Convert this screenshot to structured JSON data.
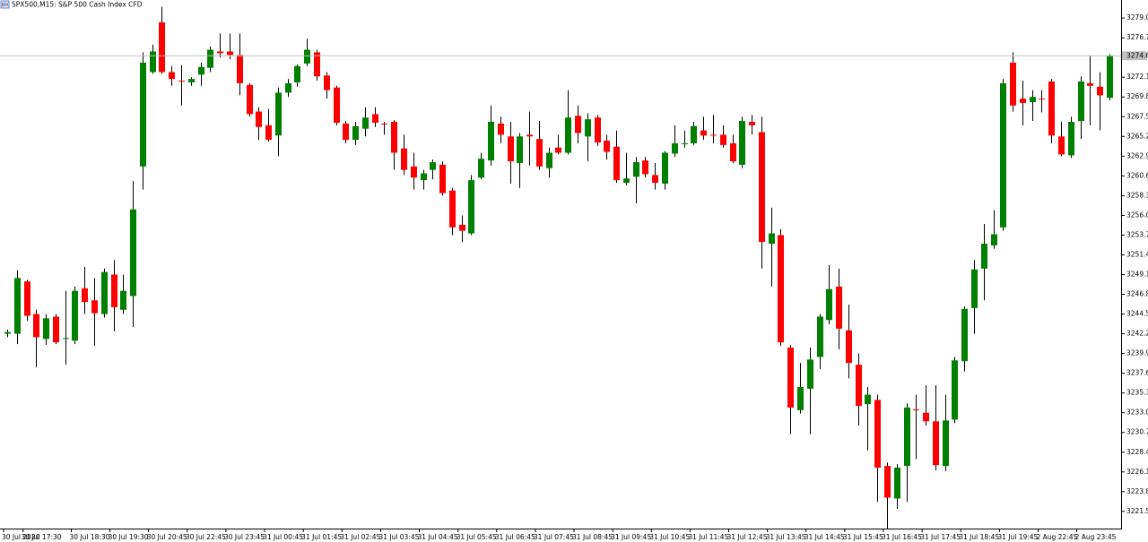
{
  "chart_data": {
    "type": "candlestick",
    "title": "SPX500,M15:  S&P 500 Cash Index CFD",
    "categories": [
      "30 Jul 2020",
      null,
      "30 Jul 17:30",
      null,
      null,
      null,
      null,
      "30 Jul 18:30",
      null,
      null,
      null,
      "30 Jul 19:30",
      null,
      null,
      null,
      "30 Jul 20:45",
      null,
      null,
      null,
      "30 Jul 22:45",
      null,
      null,
      null,
      "30 Jul 23:45",
      null,
      null,
      null,
      "31 Jul 00:45",
      null,
      null,
      null,
      "31 Jul 01:45",
      null,
      null,
      null,
      "31 Jul 02:45",
      null,
      null,
      null,
      "31 Jul 03:45",
      null,
      null,
      null,
      "31 Jul 04:45",
      null,
      null,
      null,
      "31 Jul 05:45",
      null,
      null,
      null,
      "31 Jul 06:45",
      null,
      null,
      null,
      "31 Jul 07:45",
      null,
      null,
      null,
      "31 Jul 08:45",
      null,
      null,
      null,
      "31 Jul 09:45",
      null,
      null,
      null,
      "31 Jul 10:45",
      null,
      null,
      null,
      "31 Jul 11:45",
      null,
      null,
      null,
      "31 Jul 12:45",
      null,
      null,
      null,
      "31 Jul 13:45",
      null,
      null,
      null,
      "31 Jul 14:45",
      null,
      null,
      null,
      "31 Jul 15:45",
      null,
      null,
      null,
      "31 Jul 16:45",
      null,
      null,
      null,
      "31 Jul 17:45",
      null,
      null,
      null,
      "31 Jul 18:45",
      null,
      null,
      null,
      "31 Jul 19:45",
      null,
      null,
      null,
      "2 Aug 22:45",
      null,
      null,
      null,
      "2 Aug 23:45",
      null,
      null,
      null
    ],
    "open": [
      3242.2,
      3242.2,
      3248.3,
      3244.5,
      3241.6,
      3244.2,
      3241.6,
      3241.4,
      3247.5,
      3246.1,
      3244.5,
      3249.1,
      3245.0,
      3246.6,
      3261.7,
      3272.7,
      3278.5,
      3272.7,
      3271.7,
      3271.5,
      3272.4,
      3273.2,
      3275.1,
      3275.1,
      3274.7,
      3271.2,
      3268.1,
      3266.5,
      3265.3,
      3270.3,
      3271.5,
      3273.7,
      3275.0,
      3272.3,
      3270.9,
      3266.7,
      3264.8,
      3266.1,
      3267.8,
      3266.7,
      3266.9,
      3263.8,
      3261.7,
      3260.1,
      3261.3,
      3261.9,
      3258.9,
      3254.9,
      3253.9,
      3260.4,
      3262.4,
      3266.7,
      3265.2,
      3262.1,
      3265.4,
      3264.9,
      3261.5,
      3263.9,
      3263.3,
      3267.6,
      3265.2,
      3267.4,
      3264.7,
      3264.0,
      3259.8,
      3260.5,
      3262.4,
      3260.7,
      3259.7,
      3263.2,
      3264.3,
      3264.4,
      3265.9,
      3265.4,
      3265.4,
      3264.4,
      3261.9,
      3266.9,
      3265.7,
      3252.7,
      3253.7,
      3240.6,
      3233.3,
      3235.8,
      3239.5,
      3243.8,
      3247.7,
      3242.6,
      3238.6,
      3234.0,
      3234.5,
      3226.8,
      3223.0,
      3226.8,
      3233.4,
      3233.0,
      3232.0,
      3226.8,
      3232.2,
      3239.0,
      3245.2,
      3249.8,
      3252.5,
      3254.6,
      3273.8,
      3269.6,
      3269.2,
      3269.6,
      3271.6,
      3265.2,
      3263.0,
      3267.0,
      3271.4,
      3271.0,
      3269.7
    ],
    "high": [
      3242.7,
      3249.6,
      3248.5,
      3245.0,
      3244.5,
      3244.5,
      3247.2,
      3247.7,
      3250.0,
      3248.7,
      3249.8,
      3250.8,
      3249.1,
      3260.0,
      3275.0,
      3275.9,
      3280.3,
      3273.4,
      3273.5,
      3272.1,
      3273.8,
      3275.7,
      3277.2,
      3277.2,
      3277.2,
      3271.4,
      3268.6,
      3268.4,
      3270.9,
      3271.9,
      3273.6,
      3276.6,
      3275.3,
      3272.7,
      3271.1,
      3267.0,
      3266.9,
      3268.6,
      3268.6,
      3266.9,
      3267.1,
      3265.4,
      3263.3,
      3261.3,
      3262.5,
      3262.3,
      3259.2,
      3256.0,
      3260.7,
      3263.3,
      3268.8,
      3267.5,
      3266.9,
      3265.6,
      3268.1,
      3267.0,
      3263.9,
      3265.4,
      3270.6,
      3268.8,
      3267.9,
      3267.7,
      3265.4,
      3265.9,
      3263.3,
      3262.8,
      3262.8,
      3262.1,
      3263.5,
      3266.5,
      3265.9,
      3266.9,
      3267.5,
      3267.7,
      3266.5,
      3265.4,
      3267.5,
      3267.7,
      3267.5,
      3256.9,
      3254.4,
      3240.9,
      3238.8,
      3240.6,
      3244.5,
      3250.2,
      3249.8,
      3245.6,
      3239.9,
      3236.0,
      3235.1,
      3227.2,
      3227.0,
      3234.1,
      3235.1,
      3236.2,
      3236.2,
      3235.1,
      3239.5,
      3245.4,
      3250.8,
      3255.0,
      3256.6,
      3271.9,
      3275.0,
      3271.7,
      3270.6,
      3270.6,
      3271.9,
      3266.9,
      3267.5,
      3272.2,
      3274.6,
      3272.7,
      3274.8
    ],
    "low": [
      3241.8,
      3241.0,
      3243.7,
      3238.3,
      3240.9,
      3241.0,
      3238.6,
      3241.0,
      3244.5,
      3240.8,
      3244.1,
      3242.5,
      3244.5,
      3243.0,
      3259.0,
      3272.5,
      3272.5,
      3271.1,
      3268.8,
      3271.1,
      3271.1,
      3272.7,
      3274.4,
      3274.2,
      3270.0,
      3267.5,
      3264.8,
      3264.6,
      3262.9,
      3269.8,
      3271.0,
      3273.4,
      3271.7,
      3269.6,
      3266.5,
      3264.4,
      3264.2,
      3265.2,
      3266.3,
      3265.4,
      3261.3,
      3260.7,
      3259.0,
      3259.0,
      3260.2,
      3258.3,
      3253.7,
      3252.9,
      3253.7,
      3260.2,
      3261.8,
      3264.4,
      3259.7,
      3259.2,
      3261.8,
      3261.3,
      3260.4,
      3263.1,
      3263.1,
      3264.4,
      3262.3,
      3264.1,
      3262.5,
      3259.8,
      3259.5,
      3257.4,
      3260.4,
      3259.0,
      3259.0,
      3262.8,
      3263.9,
      3264.2,
      3264.8,
      3264.4,
      3263.9,
      3262.1,
      3261.5,
      3265.4,
      3249.8,
      3247.7,
      3240.8,
      3230.5,
      3232.9,
      3230.5,
      3238.1,
      3243.3,
      3240.4,
      3237.0,
      3231.5,
      3228.6,
      3222.6,
      3219.5,
      3221.8,
      3222.6,
      3227.6,
      3231.5,
      3226.3,
      3226.2,
      3231.8,
      3237.8,
      3242.2,
      3246.1,
      3252.1,
      3254.2,
      3268.1,
      3266.5,
      3267.0,
      3268.0,
      3264.4,
      3262.9,
      3262.7,
      3264.9,
      3266.5,
      3265.9,
      3269.4
    ],
    "close": [
      3242.4,
      3248.7,
      3244.3,
      3241.8,
      3244.0,
      3241.2,
      3241.7,
      3247.2,
      3245.9,
      3244.6,
      3249.4,
      3245.3,
      3247.2,
      3256.7,
      3273.8,
      3275.1,
      3272.7,
      3271.9,
      3271.6,
      3271.9,
      3273.3,
      3275.3,
      3274.9,
      3274.7,
      3271.4,
      3267.8,
      3266.3,
      3264.8,
      3270.3,
      3271.4,
      3273.4,
      3275.3,
      3272.2,
      3270.6,
      3266.8,
      3264.8,
      3266.4,
      3267.4,
      3266.8,
      3266.6,
      3263.3,
      3261.3,
      3260.4,
      3260.9,
      3262.2,
      3258.6,
      3254.6,
      3254.2,
      3260.1,
      3262.6,
      3266.9,
      3265.4,
      3262.3,
      3265.2,
      3265.2,
      3261.7,
      3263.3,
      3263.3,
      3267.4,
      3265.6,
      3267.2,
      3264.5,
      3263.4,
      3260.1,
      3260.3,
      3262.2,
      3260.8,
      3259.8,
      3263.3,
      3264.4,
      3264.4,
      3266.4,
      3265.3,
      3265.3,
      3264.2,
      3262.3,
      3267.0,
      3266.5,
      3252.9,
      3253.9,
      3241.2,
      3233.6,
      3236.0,
      3239.2,
      3244.2,
      3247.4,
      3242.8,
      3238.8,
      3233.8,
      3235.1,
      3226.6,
      3223.1,
      3226.6,
      3233.6,
      3233.3,
      3232.0,
      3226.9,
      3232.1,
      3239.1,
      3245.1,
      3249.7,
      3252.7,
      3253.8,
      3271.4,
      3268.8,
      3269.1,
      3269.8,
      3269.5,
      3265.3,
      3263.1,
      3266.9,
      3271.6,
      3271.1,
      3270.0,
      3274.6
    ],
    "up_color": "#008000",
    "down_color": "#ff0000",
    "wick_color": "#000000",
    "last_price": 3274.6,
    "last_price_color": "#c0c0c0",
    "ylim": [
      3219.5,
      3281.1
    ],
    "yticks": [
      {
        "value": 3279,
        "label": "3279.0"
      },
      3276.7,
      3272.1,
      3269.8,
      3267.5,
      3265.2,
      3262.9,
      3260.6,
      3258.3,
      {
        "value": 3256,
        "label": "3256.0"
      },
      3253.7,
      3251.4,
      3249.1,
      3246.8,
      3244.5,
      3242.2,
      3239.9,
      3237.6,
      3235.3,
      {
        "value": 3233,
        "label": "3233.0"
      },
      3230.7,
      3228.4,
      3226.1,
      3223.8,
      3221.5
    ],
    "grid": false
  }
}
